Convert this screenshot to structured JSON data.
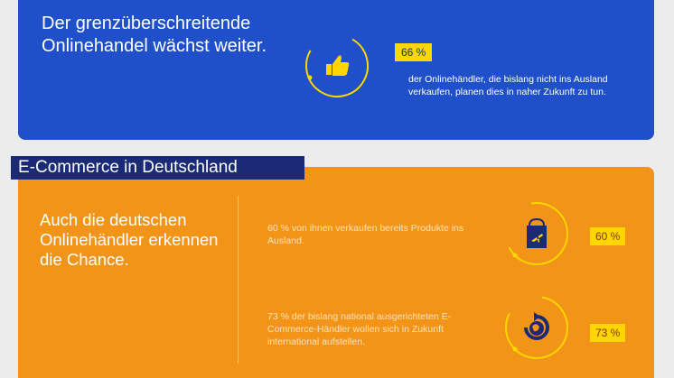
{
  "header": {
    "title": "Der grenzüberschreitende Onlinehandel wächst weiter.",
    "stat": "66 %",
    "description": "der Onlinehändler, die bislang nicht ins Ausland verkaufen, planen dies in naher Zukunft zu tun.",
    "icon": "thumbs-up-icon"
  },
  "section": {
    "label": "E-Commerce in Deutschland",
    "title": "Auch die deutschen Onlinehändler erkennen die Chance.",
    "items": [
      {
        "text": "60 % von ihnen verkaufen bereits Produkte ins Ausland.",
        "stat": "60 %",
        "icon": "shopping-bag-plane-icon"
      },
      {
        "text": "73 % der bislang national ausgerichteten E-Commerce-Händler wollen sich in Zukunft international aufstellen.",
        "stat": "73 %",
        "icon": "globe-arrow-icon"
      }
    ]
  },
  "colors": {
    "blue": "#1f4fc9",
    "orange": "#f29418",
    "navy": "#1a2a75",
    "yellow": "#ffd600"
  }
}
